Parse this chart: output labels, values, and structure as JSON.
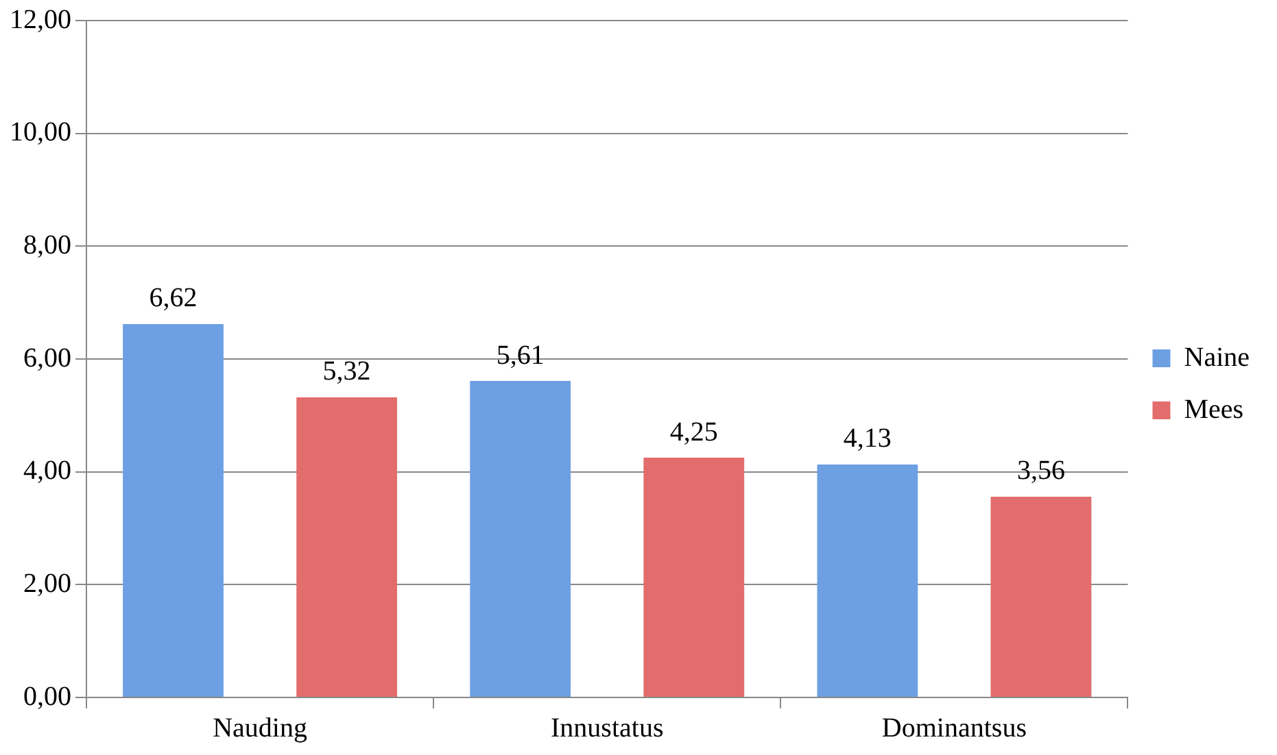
{
  "chart_data": {
    "type": "bar",
    "categories": [
      "Nauding",
      "Innustatus",
      "Dominantsus"
    ],
    "series": [
      {
        "name": "Naine",
        "color": "#6d9fe3",
        "values": [
          6.62,
          5.61,
          4.13
        ],
        "value_labels": [
          "6,62",
          "5,61",
          "4,13"
        ]
      },
      {
        "name": "Mees",
        "color": "#e36c6c",
        "values": [
          5.32,
          4.25,
          3.56
        ],
        "value_labels": [
          "5,32",
          "4,25",
          "3,56"
        ]
      }
    ],
    "ylim": [
      0,
      12
    ],
    "yticks": [
      {
        "value": 0,
        "label": "0,00"
      },
      {
        "value": 2,
        "label": "2,00"
      },
      {
        "value": 4,
        "label": "4,00"
      },
      {
        "value": 6,
        "label": "6,00"
      },
      {
        "value": 8,
        "label": "8,00"
      },
      {
        "value": 10,
        "label": "10,00"
      },
      {
        "value": 12,
        "label": "12,00"
      }
    ],
    "grid": "y",
    "legend": "right"
  }
}
